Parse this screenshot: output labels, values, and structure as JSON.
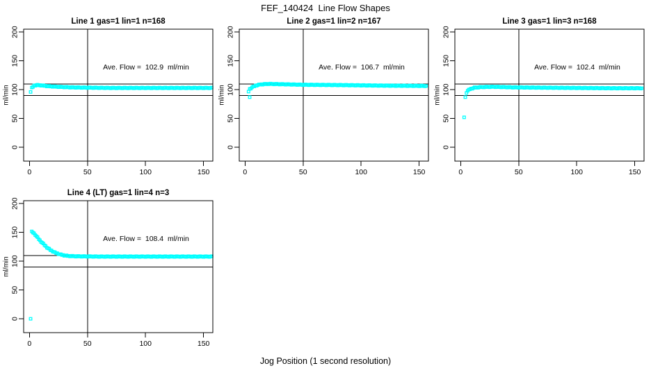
{
  "title": "FEF_140424  Line Flow Shapes",
  "xlabel": "Jog Position (1 second resolution)",
  "colors": {
    "marker": "#00FFFF",
    "axis": "#000000",
    "background": "#FFFFFF"
  },
  "chart_data": [
    {
      "type": "scatter",
      "title": "Line 1 gas=1 lin=1 n=168",
      "ylabel": "ml/min",
      "ave_flow": 102.9,
      "ave_label": "Ave. Flow =  102.9  ml/min",
      "xlim": [
        -5,
        158
      ],
      "ylim": [
        -24,
        205
      ],
      "xticks": [
        0,
        50,
        100,
        150
      ],
      "yticks": [
        0,
        50,
        100,
        150,
        200
      ],
      "vline_x": 50,
      "hlines": [
        90,
        110
      ],
      "marker": "open-square",
      "marker_color": "#00FFFF",
      "outliers": [],
      "curve_anchors": [
        [
          1,
          96
        ],
        [
          2,
          103
        ],
        [
          4,
          107
        ],
        [
          6,
          108
        ],
        [
          10,
          107.5
        ],
        [
          16,
          106
        ],
        [
          24,
          105
        ],
        [
          36,
          104
        ],
        [
          50,
          103.5
        ],
        [
          70,
          103
        ],
        [
          110,
          103
        ],
        [
          157,
          103
        ]
      ]
    },
    {
      "type": "scatter",
      "title": "Line 2 gas=1 lin=2 n=167",
      "ylabel": "ml/min",
      "ave_flow": 106.7,
      "ave_label": "Ave. Flow =  106.7  ml/min",
      "xlim": [
        -5,
        158
      ],
      "ylim": [
        -24,
        205
      ],
      "xticks": [
        0,
        50,
        100,
        150
      ],
      "yticks": [
        0,
        50,
        100,
        150,
        200
      ],
      "vline_x": 50,
      "hlines": [
        90,
        110
      ],
      "marker": "open-square",
      "marker_color": "#00FFFF",
      "outliers": [
        [
          4,
          87
        ]
      ],
      "curve_anchors": [
        [
          3,
          97
        ],
        [
          4,
          101
        ],
        [
          6,
          104
        ],
        [
          9,
          107
        ],
        [
          13,
          109
        ],
        [
          20,
          110
        ],
        [
          30,
          109.5
        ],
        [
          50,
          108.5
        ],
        [
          80,
          108
        ],
        [
          120,
          107
        ],
        [
          156,
          106.5
        ]
      ]
    },
    {
      "type": "scatter",
      "title": "Line 3 gas=1 lin=3 n=168",
      "ylabel": "ml/min",
      "ave_flow": 102.4,
      "ave_label": "Ave. Flow =  102.4  ml/min",
      "xlim": [
        -5,
        158
      ],
      "ylim": [
        -24,
        205
      ],
      "xticks": [
        0,
        50,
        100,
        150
      ],
      "yticks": [
        0,
        50,
        100,
        150,
        200
      ],
      "vline_x": 50,
      "hlines": [
        90,
        110
      ],
      "marker": "open-square",
      "marker_color": "#00FFFF",
      "outliers": [
        [
          3,
          52
        ],
        [
          4,
          87
        ]
      ],
      "curve_anchors": [
        [
          5,
          95
        ],
        [
          6,
          98
        ],
        [
          8,
          101
        ],
        [
          12,
          103.5
        ],
        [
          18,
          104.5
        ],
        [
          28,
          105
        ],
        [
          45,
          104
        ],
        [
          70,
          103.5
        ],
        [
          100,
          103
        ],
        [
          130,
          102.5
        ],
        [
          156,
          102.5
        ]
      ]
    },
    {
      "type": "scatter",
      "title": "Line 4 (LT) gas=1 lin=4 n=3",
      "ylabel": "ml/min",
      "ave_flow": 108.4,
      "ave_label": "Ave. Flow =  108.4  ml/min",
      "xlim": [
        -5,
        158
      ],
      "ylim": [
        -24,
        205
      ],
      "xticks": [
        0,
        50,
        100,
        150
      ],
      "yticks": [
        0,
        50,
        100,
        150,
        200
      ],
      "vline_x": 50,
      "hlines": [
        90,
        110
      ],
      "marker": "open-square",
      "marker_color": "#00FFFF",
      "outliers": [
        [
          1,
          0
        ]
      ],
      "curve_anchors": [
        [
          2,
          151
        ],
        [
          3,
          150
        ],
        [
          5,
          146
        ],
        [
          7,
          141
        ],
        [
          9,
          136
        ],
        [
          12,
          130
        ],
        [
          15,
          124
        ],
        [
          18,
          119.5
        ],
        [
          22,
          115
        ],
        [
          26,
          112
        ],
        [
          30,
          110
        ],
        [
          34,
          109
        ],
        [
          40,
          108.5
        ],
        [
          60,
          108
        ],
        [
          90,
          108
        ],
        [
          120,
          108
        ],
        [
          157,
          108
        ]
      ]
    }
  ]
}
